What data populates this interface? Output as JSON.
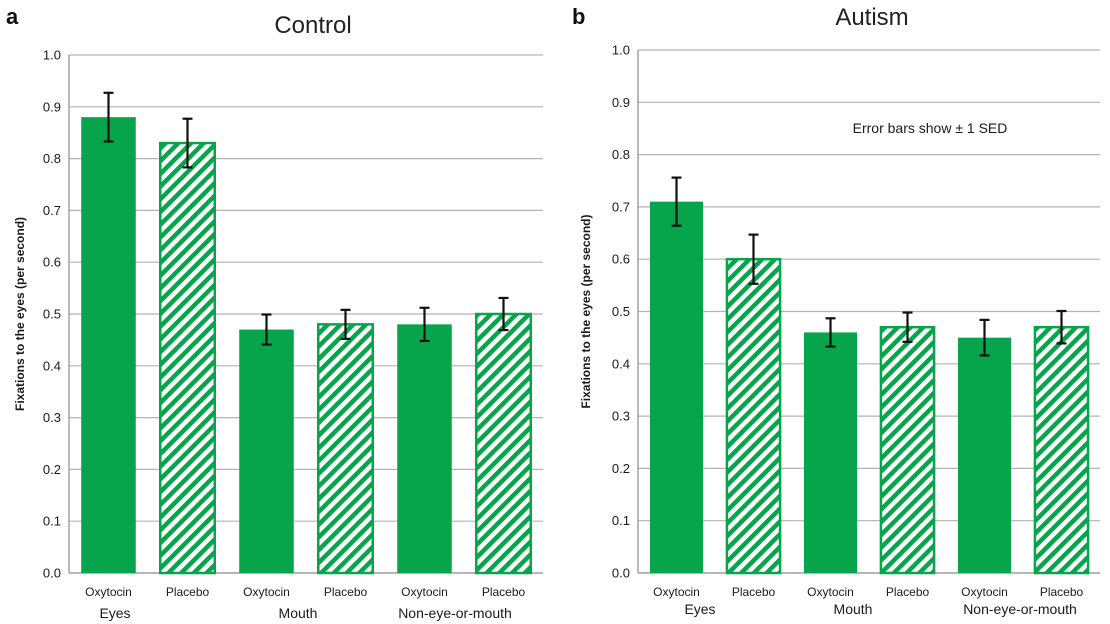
{
  "colors": {
    "bar": "#06a44b",
    "grid": "#b3b3b3"
  },
  "chart_data": [
    {
      "type": "bar",
      "panel_letter": "a",
      "title": "Control",
      "ylabel": "Fixations to the eyes (per second)",
      "ylim": [
        0,
        1.0
      ],
      "yticks": [
        "0.0",
        "0.1",
        "0.2",
        "0.3",
        "0.4",
        "0.5",
        "0.6",
        "0.7",
        "0.8",
        "0.9",
        "1.0"
      ],
      "grid": true,
      "categories": [
        "Oxytocin",
        "Placebo",
        "Oxytocin",
        "Placebo",
        "Oxytocin",
        "Placebo"
      ],
      "groups": [
        "Eyes",
        "Mouth",
        "Non-eye-or-mouth"
      ],
      "series": [
        {
          "values": [
            0.88,
            0.83,
            0.47,
            0.48,
            0.48,
            0.5
          ],
          "errors": [
            0.047,
            0.047,
            0.029,
            0.028,
            0.032,
            0.031
          ],
          "fill_pattern": [
            "solid",
            "hatched",
            "solid",
            "hatched",
            "solid",
            "hatched"
          ]
        }
      ],
      "annotation": ""
    },
    {
      "type": "bar",
      "panel_letter": "b",
      "title": "Autism",
      "ylabel": "Fixations to the eyes (per second)",
      "ylim": [
        0,
        1.0
      ],
      "yticks": [
        "0.0",
        "0.1",
        "0.2",
        "0.3",
        "0.4",
        "0.5",
        "0.6",
        "0.7",
        "0.8",
        "0.9",
        "1.0"
      ],
      "grid": true,
      "categories": [
        "Oxytocin",
        "Placebo",
        "Oxytocin",
        "Placebo",
        "Oxytocin",
        "Placebo"
      ],
      "groups": [
        "Eyes",
        "Mouth",
        "Non-eye-or-mouth"
      ],
      "series": [
        {
          "values": [
            0.71,
            0.6,
            0.46,
            0.47,
            0.45,
            0.47
          ],
          "errors": [
            0.046,
            0.047,
            0.027,
            0.028,
            0.034,
            0.031
          ],
          "fill_pattern": [
            "solid",
            "hatched",
            "solid",
            "hatched",
            "solid",
            "hatched"
          ]
        }
      ],
      "annotation": "Error bars show ± 1 SED"
    }
  ]
}
